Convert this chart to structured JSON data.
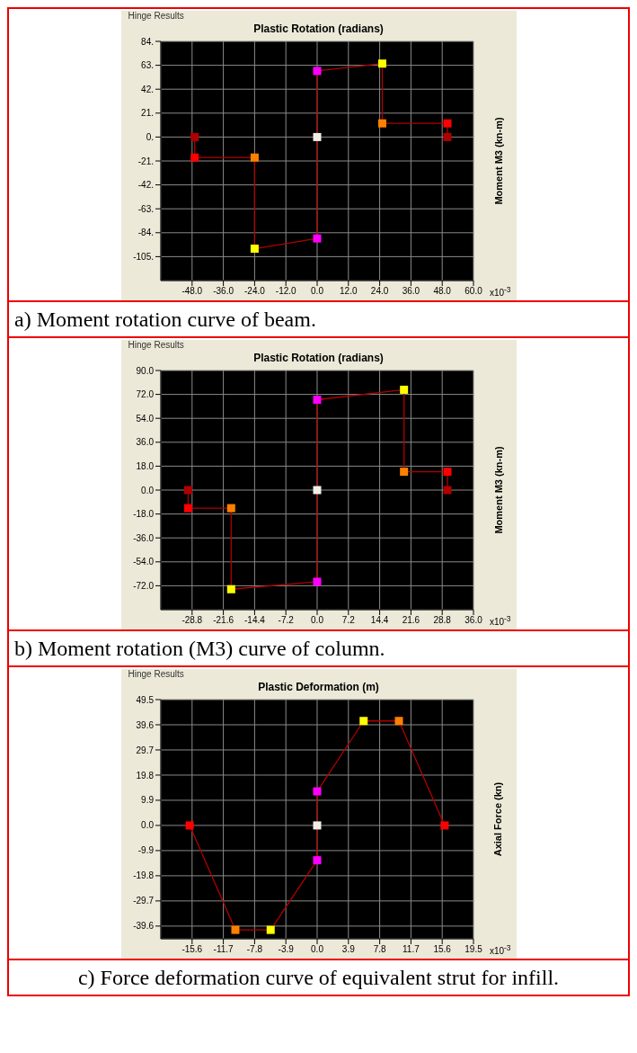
{
  "chart_data": [
    {
      "type": "line",
      "xlabel": "Plastic Rotation  (radians)",
      "ylabel": "Moment M3  (kn-m)",
      "annotations": [
        "Hinge Results",
        "x10$^{-3}$",
        "a) Moment rotation curve of beam."
      ],
      "xlim": [
        -60,
        60
      ],
      "xticks": [
        {
          "value": -48,
          "label": "-48.0"
        },
        {
          "value": -36,
          "label": "-36.0"
        },
        {
          "value": -24,
          "label": "-24.0"
        },
        {
          "value": -12,
          "label": "-12.0"
        },
        {
          "value": 0,
          "label": "0.0"
        },
        {
          "value": 12,
          "label": "12.0"
        },
        {
          "value": 24,
          "label": "24.0"
        },
        {
          "value": 36,
          "label": "36.0"
        },
        {
          "value": 48,
          "label": "48.0"
        },
        {
          "value": 60,
          "label": "60.0"
        }
      ],
      "ylim": [
        -126,
        84
      ],
      "yticks": [
        {
          "value": 84,
          "label": "84."
        },
        {
          "value": 63,
          "label": "63."
        },
        {
          "value": 42,
          "label": "42."
        },
        {
          "value": 21,
          "label": "21."
        },
        {
          "value": 0,
          "label": "0."
        },
        {
          "value": -21,
          "label": "-21."
        },
        {
          "value": -42,
          "label": "-42."
        },
        {
          "value": -63,
          "label": "-63."
        },
        {
          "value": -84,
          "label": "-84."
        },
        {
          "value": -105,
          "label": "-105."
        }
      ],
      "grid": true,
      "marker": "square",
      "line_style": "solid",
      "series": [
        {
          "color": "#b00000",
          "x": [
            -47,
            -47,
            -24,
            -24,
            0,
            0,
            0,
            25,
            25,
            50,
            50
          ],
          "values": [
            0,
            -18,
            -18,
            -98,
            -89,
            0,
            58,
            64.5,
            12,
            12,
            0
          ],
          "colors": [
            "#b00000",
            "#ff0000",
            "#ff8000",
            "#ffff00",
            "#ff00ff",
            "#f0f0e8",
            "#ff00ff",
            "#ffff00",
            "#ff8000",
            "#ff0000",
            "#b00000"
          ]
        }
      ]
    },
    {
      "type": "line",
      "xlabel": "Plastic Rotation  (radians)",
      "ylabel": "Moment M3  (kn-m)",
      "annotations": [
        "Hinge Results",
        "x10$^{-3}$",
        "b) Moment rotation (M3) curve of column."
      ],
      "xlim": [
        -36,
        36
      ],
      "xticks": [
        -28.8,
        -21.6,
        -14.4,
        -7.2,
        {
          "value": 0,
          "label": "0.0"
        },
        7.2,
        14.4,
        21.6,
        28.8,
        {
          "value": 36,
          "label": "36.0"
        }
      ],
      "ylim": [
        -90,
        90
      ],
      "yticks": [
        {
          "value": 90,
          "label": "90.0"
        },
        {
          "value": 72,
          "label": "72.0"
        },
        {
          "value": 54,
          "label": "54.0"
        },
        {
          "value": 36,
          "label": "36.0"
        },
        {
          "value": 18,
          "label": "18.0"
        },
        {
          "value": 0,
          "label": "0.0"
        },
        {
          "value": -18,
          "label": "-18.0"
        },
        {
          "value": -36,
          "label": "-36.0"
        },
        {
          "value": -54,
          "label": "-54.0"
        },
        {
          "value": -72,
          "label": "-72.0"
        }
      ],
      "grid": true,
      "marker": "square",
      "line_style": "solid",
      "series": [
        {
          "color": "#b00000",
          "x": [
            -29.7,
            -29.7,
            -19.8,
            -19.8,
            0,
            0,
            0,
            20,
            20,
            30,
            30
          ],
          "values": [
            0,
            -13.6,
            -13.6,
            -74.6,
            -69,
            0,
            68,
            75.5,
            13.8,
            13.8,
            0
          ],
          "colors": [
            "#b00000",
            "#ff0000",
            "#ff8000",
            "#ffff00",
            "#ff00ff",
            "#f0f0e8",
            "#ff00ff",
            "#ffff00",
            "#ff8000",
            "#ff0000",
            "#b00000"
          ]
        }
      ]
    },
    {
      "type": "line",
      "xlabel": "Plastic Deformation  (m)",
      "ylabel": "Axial Force  (kn)",
      "annotations": [
        "Hinge Results",
        "x10$^{-3}$",
        "c) Force deformation curve of equivalent strut for infill."
      ],
      "xlim": [
        -19.5,
        19.5
      ],
      "xticks": [
        -15.6,
        -11.7,
        -7.8,
        -3.9,
        {
          "value": 0,
          "label": "0.0"
        },
        3.9,
        7.8,
        11.7,
        15.6,
        19.5
      ],
      "ylim": [
        -44.6,
        49.5
      ],
      "yticks": [
        49.5,
        39.6,
        29.7,
        19.8,
        9.9,
        {
          "value": 0,
          "label": "0.0"
        },
        -9.9,
        -19.8,
        -29.7,
        -39.6
      ],
      "grid": true,
      "marker": "square",
      "line_style": "solid",
      "series": [
        {
          "color": "#b00000",
          "x": [
            -15.9,
            -10.2,
            -5.8,
            0,
            0,
            0,
            5.8,
            10.2,
            15.9
          ],
          "values": [
            0,
            -41.1,
            -41.1,
            -13.7,
            0,
            13.4,
            41.1,
            41.1,
            0
          ],
          "colors": [
            "#ff0000",
            "#ff8000",
            "#ffff00",
            "#ff00ff",
            "#f0f0e8",
            "#ff00ff",
            "#ffff00",
            "#ff8000",
            "#ff0000"
          ]
        }
      ]
    }
  ]
}
